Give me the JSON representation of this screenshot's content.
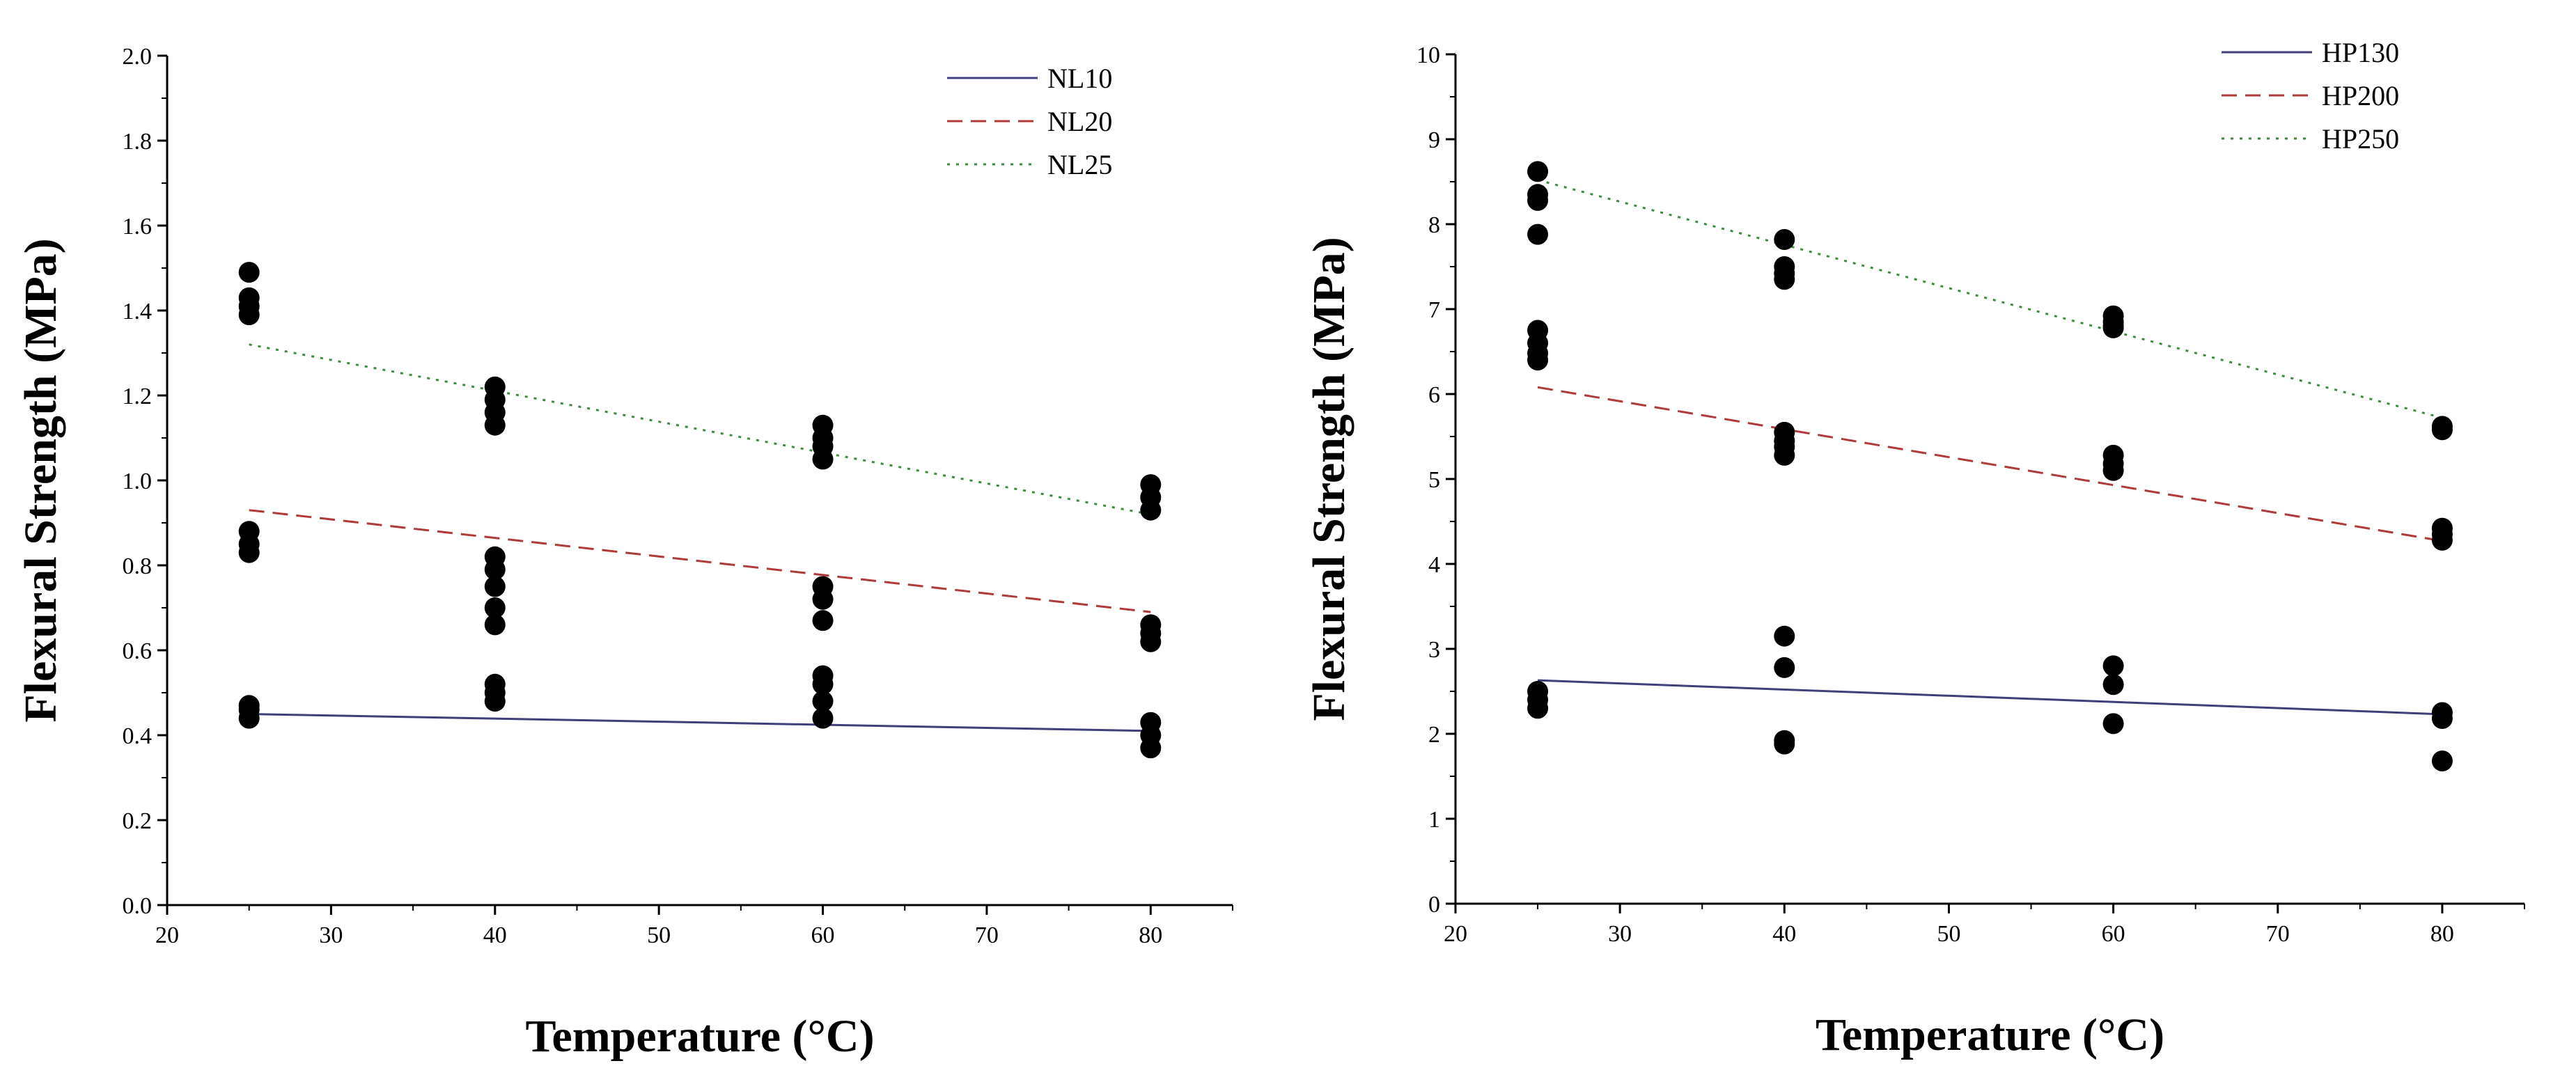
{
  "chart_data": [
    {
      "type": "scatter",
      "title": "",
      "xlabel": "Temperature (°C)",
      "ylabel": "Flexural Strength (MPa)",
      "xlim": [
        20,
        85
      ],
      "ylim": [
        0.0,
        2.0
      ],
      "x_ticks": [
        20,
        30,
        40,
        50,
        60,
        70,
        80
      ],
      "x_tick_labels": [
        "20",
        "30",
        "40",
        "50",
        "60",
        "70",
        "80"
      ],
      "y_ticks": [
        0.0,
        0.2,
        0.4,
        0.6,
        0.8,
        1.0,
        1.2,
        1.4,
        1.6,
        1.8,
        2.0
      ],
      "y_tick_labels": [
        "0.0",
        "0.2",
        "0.4",
        "0.6",
        "0.8",
        "1.0",
        "1.2",
        "1.4",
        "1.6",
        "1.8",
        "2.0"
      ],
      "grid": false,
      "legend_position": "top-right",
      "points": [
        {
          "x": 25,
          "y": 1.49
        },
        {
          "x": 25,
          "y": 1.43
        },
        {
          "x": 25,
          "y": 1.41
        },
        {
          "x": 25,
          "y": 1.39
        },
        {
          "x": 25,
          "y": 0.88
        },
        {
          "x": 25,
          "y": 0.85
        },
        {
          "x": 25,
          "y": 0.83
        },
        {
          "x": 25,
          "y": 0.47
        },
        {
          "x": 25,
          "y": 0.46
        },
        {
          "x": 25,
          "y": 0.44
        },
        {
          "x": 40,
          "y": 1.22
        },
        {
          "x": 40,
          "y": 1.19
        },
        {
          "x": 40,
          "y": 1.16
        },
        {
          "x": 40,
          "y": 1.13
        },
        {
          "x": 40,
          "y": 0.82
        },
        {
          "x": 40,
          "y": 0.79
        },
        {
          "x": 40,
          "y": 0.75
        },
        {
          "x": 40,
          "y": 0.7
        },
        {
          "x": 40,
          "y": 0.66
        },
        {
          "x": 40,
          "y": 0.52
        },
        {
          "x": 40,
          "y": 0.5
        },
        {
          "x": 40,
          "y": 0.48
        },
        {
          "x": 60,
          "y": 1.13
        },
        {
          "x": 60,
          "y": 1.1
        },
        {
          "x": 60,
          "y": 1.08
        },
        {
          "x": 60,
          "y": 1.05
        },
        {
          "x": 60,
          "y": 0.75
        },
        {
          "x": 60,
          "y": 0.72
        },
        {
          "x": 60,
          "y": 0.67
        },
        {
          "x": 60,
          "y": 0.54
        },
        {
          "x": 60,
          "y": 0.52
        },
        {
          "x": 60,
          "y": 0.48
        },
        {
          "x": 60,
          "y": 0.44
        },
        {
          "x": 80,
          "y": 0.99
        },
        {
          "x": 80,
          "y": 0.96
        },
        {
          "x": 80,
          "y": 0.93
        },
        {
          "x": 80,
          "y": 0.66
        },
        {
          "x": 80,
          "y": 0.64
        },
        {
          "x": 80,
          "y": 0.62
        },
        {
          "x": 80,
          "y": 0.43
        },
        {
          "x": 80,
          "y": 0.4
        },
        {
          "x": 80,
          "y": 0.37
        }
      ],
      "series": [
        {
          "name": "NL10",
          "style": "solid",
          "color": "#3f3f7a",
          "x": [
            25,
            80
          ],
          "y": [
            0.45,
            0.41
          ]
        },
        {
          "name": "NL20",
          "style": "dashed",
          "color": "#b03a3a",
          "x": [
            25,
            80
          ],
          "y": [
            0.93,
            0.69
          ]
        },
        {
          "name": "NL25",
          "style": "dotted",
          "color": "#3c8c3c",
          "x": [
            25,
            80
          ],
          "y": [
            1.32,
            0.92
          ]
        }
      ]
    },
    {
      "type": "scatter",
      "title": "",
      "xlabel": "Temperature (°C)",
      "ylabel": "Flexural Strength (MPa)",
      "xlim": [
        20,
        85
      ],
      "ylim": [
        0,
        10
      ],
      "x_ticks": [
        20,
        30,
        40,
        50,
        60,
        70,
        80
      ],
      "x_tick_labels": [
        "20",
        "30",
        "40",
        "50",
        "60",
        "70",
        "80"
      ],
      "y_ticks": [
        0,
        1,
        2,
        3,
        4,
        5,
        6,
        7,
        8,
        9,
        10
      ],
      "y_tick_labels": [
        "0",
        "1",
        "2",
        "3",
        "4",
        "5",
        "6",
        "7",
        "8",
        "9",
        "10"
      ],
      "grid": false,
      "legend_position": "top-right",
      "points": [
        {
          "x": 25,
          "y": 8.62
        },
        {
          "x": 25,
          "y": 8.35
        },
        {
          "x": 25,
          "y": 8.28
        },
        {
          "x": 25,
          "y": 7.88
        },
        {
          "x": 25,
          "y": 6.75
        },
        {
          "x": 25,
          "y": 6.6
        },
        {
          "x": 25,
          "y": 6.48
        },
        {
          "x": 25,
          "y": 6.4
        },
        {
          "x": 25,
          "y": 2.5
        },
        {
          "x": 25,
          "y": 2.4
        },
        {
          "x": 25,
          "y": 2.3
        },
        {
          "x": 40,
          "y": 7.82
        },
        {
          "x": 40,
          "y": 7.5
        },
        {
          "x": 40,
          "y": 7.42
        },
        {
          "x": 40,
          "y": 7.35
        },
        {
          "x": 40,
          "y": 5.55
        },
        {
          "x": 40,
          "y": 5.45
        },
        {
          "x": 40,
          "y": 5.38
        },
        {
          "x": 40,
          "y": 5.28
        },
        {
          "x": 40,
          "y": 3.15
        },
        {
          "x": 40,
          "y": 2.78
        },
        {
          "x": 40,
          "y": 1.92
        },
        {
          "x": 40,
          "y": 1.88
        },
        {
          "x": 60,
          "y": 6.92
        },
        {
          "x": 60,
          "y": 6.85
        },
        {
          "x": 60,
          "y": 6.8
        },
        {
          "x": 60,
          "y": 6.78
        },
        {
          "x": 60,
          "y": 5.28
        },
        {
          "x": 60,
          "y": 5.18
        },
        {
          "x": 60,
          "y": 5.1
        },
        {
          "x": 60,
          "y": 2.8
        },
        {
          "x": 60,
          "y": 2.58
        },
        {
          "x": 60,
          "y": 2.12
        },
        {
          "x": 80,
          "y": 5.62
        },
        {
          "x": 80,
          "y": 5.58
        },
        {
          "x": 80,
          "y": 4.42
        },
        {
          "x": 80,
          "y": 4.35
        },
        {
          "x": 80,
          "y": 4.28
        },
        {
          "x": 80,
          "y": 2.25
        },
        {
          "x": 80,
          "y": 2.18
        },
        {
          "x": 80,
          "y": 1.68
        }
      ],
      "series": [
        {
          "name": "HP130",
          "style": "solid",
          "color": "#3f3f7a",
          "x": [
            25,
            80
          ],
          "y": [
            2.63,
            2.23
          ]
        },
        {
          "name": "HP200",
          "style": "dashed",
          "color": "#b03a3a",
          "x": [
            25,
            80
          ],
          "y": [
            6.08,
            4.27
          ]
        },
        {
          "name": "HP250",
          "style": "dotted",
          "color": "#3c8c3c",
          "x": [
            25,
            80
          ],
          "y": [
            8.52,
            5.72
          ]
        }
      ]
    }
  ]
}
